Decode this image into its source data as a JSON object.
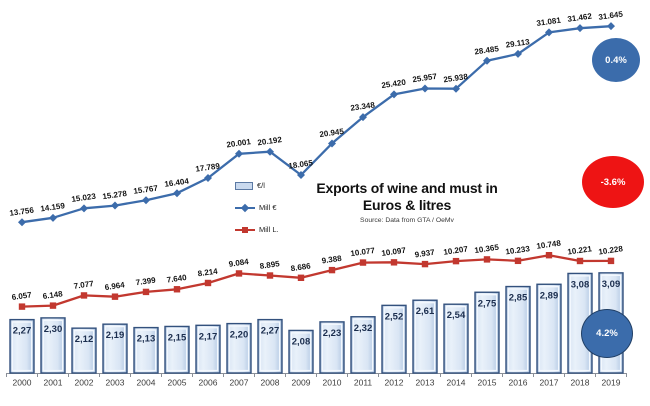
{
  "title": {
    "line1": "Exports of wine and must in",
    "line2": "Euros & litres",
    "source": "Source: Data from GTA / OeMv"
  },
  "legend": [
    {
      "label": "€/l",
      "type": "bar-swatch",
      "color": "#c9d9ee",
      "border": "#5b79a3"
    },
    {
      "label": "Mill €",
      "type": "line-diamond",
      "color": "#3c6cab"
    },
    {
      "label": "Mill L.",
      "type": "line-square",
      "color": "#c2382f"
    }
  ],
  "badges": [
    {
      "label": "0.4%",
      "series": "Mill €",
      "fill": "#3b6cab",
      "border": "#2d5a94"
    },
    {
      "label": "-3.6%",
      "series": "Mill L.",
      "fill": "#ee1414",
      "border": "#ee1414"
    },
    {
      "label": "4.2%",
      "series": "€/l",
      "fill": "#3b6cab",
      "border": "#203f66"
    }
  ],
  "chart_data": {
    "type": "combo",
    "title": "Exports of wine and must in Euros & litres",
    "source": "Source: Data from GTA / OeMv",
    "categories": [
      "2000",
      "2001",
      "2002",
      "2003",
      "2004",
      "2005",
      "2006",
      "2007",
      "2008",
      "2009",
      "2010",
      "2011",
      "2012",
      "2013",
      "2014",
      "2015",
      "2016",
      "2017",
      "2018",
      "2019"
    ],
    "series": [
      {
        "name": "Mill €",
        "type": "line",
        "marker": "diamond",
        "color": "#3c6cab",
        "values": [
          13.756,
          14.159,
          15.023,
          15.278,
          15.767,
          16.404,
          17.789,
          20.001,
          20.192,
          18.065,
          20.945,
          23.348,
          25.42,
          25.957,
          25.938,
          28.485,
          29.113,
          31.081,
          31.462,
          31.645
        ],
        "labels": [
          "13.756",
          "14.159",
          "15.023",
          "15.278",
          "15.767",
          "16.404",
          "17.789",
          "20.001",
          "20.192",
          "18.065",
          "20.945",
          "23.348",
          "25.420",
          "25.957",
          "25.938",
          "28.485",
          "29.113",
          "31.081",
          "31.462",
          "31.645"
        ]
      },
      {
        "name": "Mill L.",
        "type": "line",
        "marker": "square",
        "color": "#c2382f",
        "values": [
          6.057,
          6.148,
          7.077,
          6.964,
          7.399,
          7.64,
          8.214,
          9.084,
          8.895,
          8.686,
          9.388,
          10.077,
          10.097,
          9.937,
          10.207,
          10.365,
          10.233,
          10.748,
          10.221,
          10.228
        ],
        "labels": [
          "6.057",
          "6.148",
          "7.077",
          "6.964",
          "7.399",
          "7.640",
          "8.214",
          "9.084",
          "8.895",
          "8.686",
          "9.388",
          "10.077",
          "10.097",
          "9.937",
          "10.207",
          "10.365",
          "10.233",
          "10.748",
          "10.221",
          "10.228"
        ]
      },
      {
        "name": "€/l",
        "type": "bar",
        "color": "#ccdcf1",
        "border": "#33517d",
        "values": [
          2.27,
          2.3,
          2.12,
          2.19,
          2.13,
          2.15,
          2.17,
          2.2,
          2.27,
          2.08,
          2.23,
          2.32,
          2.52,
          2.61,
          2.54,
          2.75,
          2.85,
          2.89,
          3.08,
          3.09
        ],
        "labels": [
          "2,27",
          "2,30",
          "2,12",
          "2,19",
          "2,13",
          "2,15",
          "2,17",
          "2,20",
          "2,27",
          "2,08",
          "2,23",
          "2,32",
          "2,52",
          "2,61",
          "2,54",
          "2,75",
          "2,85",
          "2,89",
          "3,08",
          "3,09"
        ]
      }
    ],
    "axes": {
      "y_axis_visible": false,
      "gridlines": false,
      "x_labels_visible": true,
      "line_axis_implied_range": [
        0,
        34
      ]
    },
    "legend_position": "middle-left"
  }
}
